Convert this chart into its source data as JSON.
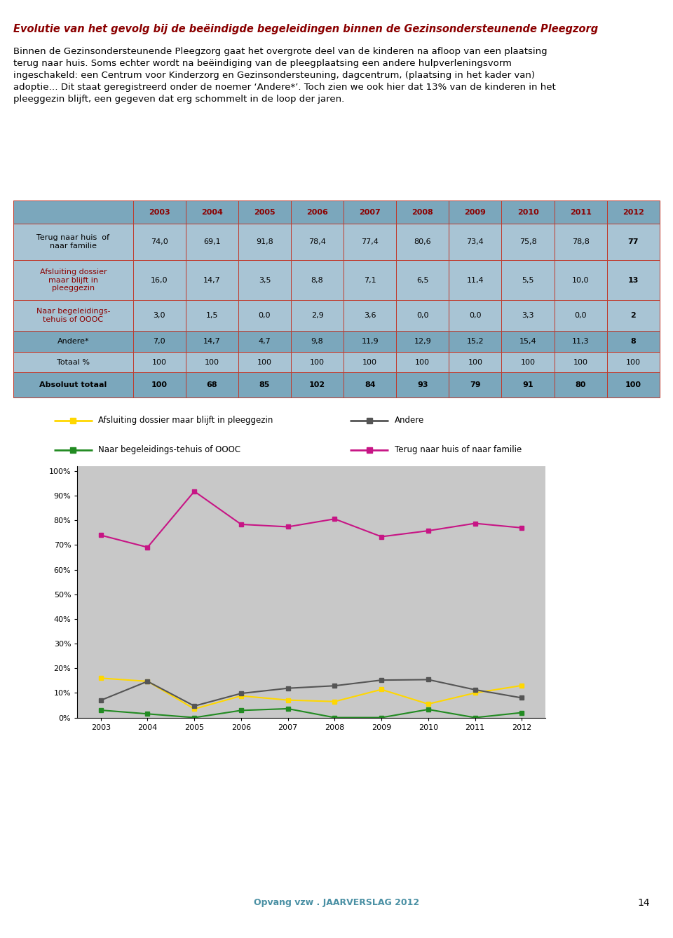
{
  "title": "Evolutie van het gevolg bij de beëindigde begeleidingen binnen de Gezinsondersteunende Pleegzorg",
  "title_color": "#8B0000",
  "para_line1": "Binnen de Gezinsondersteunende Pleegzorg gaat het overgrote deel van de kinderen na afloop van een plaatsing",
  "para_line2": "terug naar huis. Soms echter wordt na beëindiging van de pleegplaatsing een andere hulpverleningsvorm",
  "para_line3": "ingeschakeld: een Centrum voor Kinderzorg en Gezinsondersteuning, dagcentrum, (plaatsing in het kader van)",
  "para_line4": "adoptie… Dit staat geregistreerd onder de noemer ‘Andere*’. Toch zien we ook hier dat 13% van de kinderen in het",
  "para_line5": "pleeggezin blijft, een gegeven dat erg schommelt in de loop der jaren.",
  "years": [
    2003,
    2004,
    2005,
    2006,
    2007,
    2008,
    2009,
    2010,
    2011,
    2012
  ],
  "table": {
    "header_bg": "#7BA7BC",
    "border_color": "#C0392B",
    "rows": [
      {
        "label": "Terug naar huis  of\nnaar familie",
        "values": [
          "74,0",
          "69,1",
          "91,8",
          "78,4",
          "77,4",
          "80,6",
          "73,4",
          "75,8",
          "78,8",
          "77"
        ],
        "label_color": "black",
        "bg": "#A8C4D4",
        "bold_last": true,
        "all_bold": false
      },
      {
        "label": "Afsluiting dossier\nmaar blijft in\npleeggezin",
        "values": [
          "16,0",
          "14,7",
          "3,5",
          "8,8",
          "7,1",
          "6,5",
          "11,4",
          "5,5",
          "10,0",
          "13"
        ],
        "label_color": "#8B0000",
        "bg": "#A8C4D4",
        "bold_last": true,
        "all_bold": false
      },
      {
        "label": "Naar begeleidings-\ntehuis of OOOC",
        "values": [
          "3,0",
          "1,5",
          "0,0",
          "2,9",
          "3,6",
          "0,0",
          "0,0",
          "3,3",
          "0,0",
          "2"
        ],
        "label_color": "#8B0000",
        "bg": "#A8C4D4",
        "bold_last": true,
        "all_bold": false
      },
      {
        "label": "Andere*",
        "values": [
          "7,0",
          "14,7",
          "4,7",
          "9,8",
          "11,9",
          "12,9",
          "15,2",
          "15,4",
          "11,3",
          "8"
        ],
        "label_color": "black",
        "bg": "#7BA7BC",
        "bold_last": true,
        "all_bold": false
      },
      {
        "label": "Totaal %",
        "values": [
          "100",
          "100",
          "100",
          "100",
          "100",
          "100",
          "100",
          "100",
          "100",
          "100"
        ],
        "label_color": "black",
        "bg": "#A8C4D4",
        "bold_last": false,
        "all_bold": false
      },
      {
        "label": "Absoluut totaal",
        "values": [
          "100",
          "68",
          "85",
          "102",
          "84",
          "93",
          "79",
          "91",
          "80",
          "100"
        ],
        "label_color": "black",
        "bg": "#7BA7BC",
        "bold_last": true,
        "all_bold": true
      }
    ]
  },
  "chart": {
    "background_color": "#C8C8C8",
    "series": [
      {
        "label": "Afsluiting dossier maar blijft in pleeggezin",
        "values": [
          16.0,
          14.7,
          3.5,
          8.8,
          7.1,
          6.5,
          11.4,
          5.5,
          10.0,
          13
        ],
        "color": "#FFD700",
        "marker": "s",
        "linewidth": 1.5
      },
      {
        "label": "Naar begeleidings-tehuis of OOOC",
        "values": [
          3.0,
          1.5,
          0.0,
          2.9,
          3.6,
          0.0,
          0.0,
          3.3,
          0.0,
          2
        ],
        "color": "#228B22",
        "marker": "s",
        "linewidth": 1.5
      },
      {
        "label": "Andere",
        "values": [
          7.0,
          14.7,
          4.7,
          9.8,
          11.9,
          12.9,
          15.2,
          15.4,
          11.3,
          8
        ],
        "color": "#555555",
        "marker": "s",
        "linewidth": 1.5
      },
      {
        "label": "Terug naar huis of naar familie",
        "values": [
          74.0,
          69.1,
          91.8,
          78.4,
          77.4,
          80.6,
          73.4,
          75.8,
          78.8,
          77
        ],
        "color": "#C71585",
        "marker": "s",
        "linewidth": 1.5
      }
    ],
    "yticks": [
      0,
      10,
      20,
      30,
      40,
      50,
      60,
      70,
      80,
      90,
      100
    ],
    "ytick_labels": [
      "0%",
      "10%",
      "20%",
      "30%",
      "40%",
      "50%",
      "60%",
      "70%",
      "80%",
      "90%",
      "100%"
    ]
  },
  "legend_items": [
    {
      "label": "Afsluiting dossier maar blijft in pleeggezin",
      "color": "#FFD700",
      "col": 0,
      "row": 0
    },
    {
      "label": "Naar begeleidings-tehuis of OOOC",
      "color": "#228B22",
      "col": 0,
      "row": 1
    },
    {
      "label": "Andere",
      "color": "#555555",
      "col": 1,
      "row": 0
    },
    {
      "label": "Terug naar huis of naar familie",
      "color": "#C71585",
      "col": 1,
      "row": 1
    }
  ],
  "footer_text": "Opvang vzw . JAARVERSLAG 2012",
  "footer_color": "#4A90A4",
  "page_number": "14"
}
